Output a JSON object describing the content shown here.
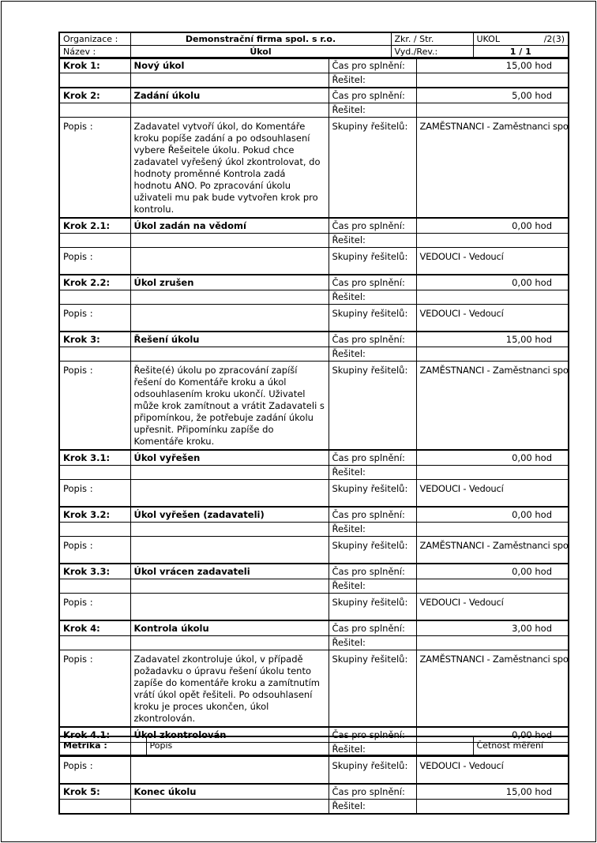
{
  "header": {
    "org_label": "Organizace :",
    "org_value": "Demonstrační firma spol. s r.o.",
    "zkr_label": "Zkr. / Str.",
    "zkr_value": "UKOL",
    "page_value": "/2(3)",
    "name_label": "Název :",
    "name_value": "Úkol",
    "rev_label": "Vyd./Rev.:",
    "rev_value": "1 / 1"
  },
  "labels": {
    "time": "Čas pro splnění:",
    "solver": "Řešitel:",
    "desc": "Popis :",
    "groups": "Skupiny řešitelů:"
  },
  "steps": [
    {
      "krok": "Krok 1:",
      "title": "Nový úkol",
      "time": "15,00 hod"
    },
    {
      "krok": "Krok 2:",
      "title": "Zadání úkolu",
      "time": "5,00 hod",
      "popis": "Zadavatel vytvoří úkol, do Komentáře kroku popíše zadání a po odsouhlasení vybere Řešeitele úkolu. Pokud chce zadavatel vyřešený úkol zkontrolovat, do hodnoty proměnné Kontrola zadá hodnotu ANO. Po zpracování úkolu uživateli mu pak bude vytvořen krok pro kontrolu.",
      "groups": "ZAMĚSTNANCI - Zaměstnanci společno"
    },
    {
      "krok": "Krok 2.1:",
      "title": "Úkol zadán na vědomí",
      "time": "0,00 hod",
      "popis": "",
      "groups": "VEDOUCI - Vedoucí"
    },
    {
      "krok": "Krok 2.2:",
      "title": "Úkol zrušen",
      "time": "0,00 hod",
      "popis": "",
      "groups": "VEDOUCI - Vedoucí"
    },
    {
      "krok": "Krok 3:",
      "title": "Řešení úkolu",
      "time": "15,00 hod",
      "popis": "Řešite(é) úkolu po zpracování zapíší řešení do Komentáře kroku a úkol odsouhlasením kroku ukončí. Uživatel může krok zamítnout a vrátit Zadavateli s připomínkou, že potřebuje zadání úkolu upřesnit. Připomínku zapíše do Komentáře kroku.",
      "groups": "ZAMĚSTNANCI - Zaměstnanci společno"
    },
    {
      "krok": "Krok 3.1:",
      "title": "Úkol vyřešen",
      "time": "0,00 hod",
      "popis": "",
      "groups": "VEDOUCI - Vedoucí"
    },
    {
      "krok": "Krok 3.2:",
      "title": "Úkol vyřešen (zadavateli)",
      "time": "0,00 hod",
      "popis": "",
      "groups": "ZAMĚSTNANCI - Zaměstnanci společno"
    },
    {
      "krok": "Krok 3.3:",
      "title": "Úkol vrácen zadavateli",
      "time": "0,00 hod",
      "popis": "",
      "groups": "VEDOUCI - Vedoucí"
    },
    {
      "krok": "Krok 4:",
      "title": "Kontrola úkolu",
      "time": "3,00 hod",
      "popis": "Zadavatel zkontroluje úkol, v případě požadavku o úpravu řešení úkolu tento zapíše do komentáře kroku a zamítnutím vrátí úkol opět řešiteli. Po odsouhlasení kroku je proces ukončen, úkol zkontrolován.",
      "groups": "ZAMĚSTNANCI - Zaměstnanci společno"
    },
    {
      "krok": "Krok 4.1:",
      "title": "Úkol zkontrolován",
      "time": "0,00 hod",
      "popis": "",
      "groups": "VEDOUCI - Vedoucí"
    },
    {
      "krok": "Krok 5:",
      "title": "Konec úkolu",
      "time": "15,00 hod"
    }
  ],
  "metrics": {
    "label": "Metrika :",
    "desc": "Popis",
    "freq": "Četnost měření"
  }
}
